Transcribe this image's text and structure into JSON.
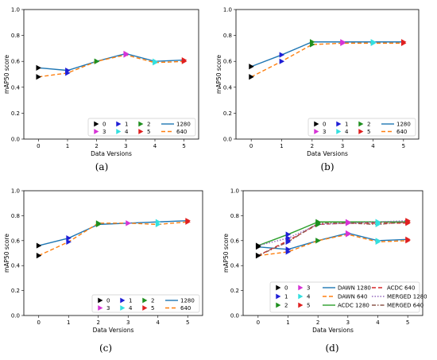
{
  "colors": {
    "v0": "#000000",
    "v1": "#1f1fd6",
    "v2": "#1f8f1f",
    "v3": "#d633d6",
    "v4": "#33e0e0",
    "v5": "#e02020",
    "line1280": "#1f77b4",
    "line640": "#ff7f0e",
    "acdc1280": "#2ca02c",
    "acdc640": "#d62728",
    "merged1280": "#9467bd",
    "merged640": "#8c564b"
  },
  "chart_data": [
    {
      "type": "line",
      "caption": "(a)",
      "xlabel": "Data Versions",
      "ylabel": "mAP50 score",
      "x": [
        0,
        1,
        2,
        3,
        4,
        5
      ],
      "xlim": [
        -0.5,
        5.5
      ],
      "ylim": [
        0.0,
        1.0
      ],
      "yticks": [
        "0.0",
        "0.2",
        "0.4",
        "0.6",
        "0.8",
        "1.0"
      ],
      "xticks": [
        "0",
        "1",
        "2",
        "3",
        "4",
        "5"
      ],
      "series": [
        {
          "name": "1280",
          "key": "line1280",
          "dash": "",
          "values": [
            0.55,
            0.53,
            0.6,
            0.66,
            0.6,
            0.61
          ]
        },
        {
          "name": "640",
          "key": "line640",
          "dash": "5,3",
          "values": [
            0.48,
            0.51,
            0.6,
            0.65,
            0.59,
            0.6
          ]
        }
      ],
      "markers": [
        {
          "version": 0,
          "color": "v0",
          "values": [
            0.55,
            0.48
          ]
        },
        {
          "version": 1,
          "color": "v1",
          "values": [
            0.53,
            0.51
          ]
        },
        {
          "version": 2,
          "color": "v2",
          "values": [
            0.6,
            0.6
          ]
        },
        {
          "version": 3,
          "color": "v3",
          "values": [
            0.66,
            0.65
          ]
        },
        {
          "version": 4,
          "color": "v4",
          "values": [
            0.6,
            0.59
          ]
        },
        {
          "version": 5,
          "color": "v5",
          "values": [
            0.61,
            0.6
          ]
        }
      ],
      "legend": {
        "marker_labels": [
          "0",
          "1",
          "2",
          "3",
          "4",
          "5"
        ],
        "line_labels": [
          "1280",
          "640"
        ],
        "placement": "lower-right"
      }
    },
    {
      "type": "line",
      "caption": "(b)",
      "xlabel": "Data Versions",
      "ylabel": "mAP50 score",
      "x": [
        0,
        1,
        2,
        3,
        4,
        5
      ],
      "xlim": [
        -0.5,
        5.5
      ],
      "ylim": [
        0.0,
        1.0
      ],
      "yticks": [
        "0.0",
        "0.2",
        "0.4",
        "0.6",
        "0.8",
        "1.0"
      ],
      "xticks": [
        "0",
        "1",
        "2",
        "3",
        "4",
        "5"
      ],
      "series": [
        {
          "name": "1280",
          "key": "line1280",
          "dash": "",
          "values": [
            0.56,
            0.65,
            0.75,
            0.75,
            0.75,
            0.75
          ]
        },
        {
          "name": "640",
          "key": "line640",
          "dash": "5,3",
          "values": [
            0.48,
            0.6,
            0.73,
            0.74,
            0.74,
            0.74
          ]
        }
      ],
      "markers": [
        {
          "version": 0,
          "color": "v0",
          "values": [
            0.56,
            0.48
          ]
        },
        {
          "version": 1,
          "color": "v1",
          "values": [
            0.65,
            0.6
          ]
        },
        {
          "version": 2,
          "color": "v2",
          "values": [
            0.75,
            0.73
          ]
        },
        {
          "version": 3,
          "color": "v3",
          "values": [
            0.75,
            0.74
          ]
        },
        {
          "version": 4,
          "color": "v4",
          "values": [
            0.75,
            0.74
          ]
        },
        {
          "version": 5,
          "color": "v5",
          "values": [
            0.75,
            0.74
          ]
        }
      ],
      "legend": {
        "marker_labels": [
          "0",
          "1",
          "2",
          "3",
          "4",
          "5"
        ],
        "line_labels": [
          "1280",
          "640"
        ],
        "placement": "lower-right"
      }
    },
    {
      "type": "line",
      "caption": "(c)",
      "xlabel": "Data Versions",
      "ylabel": "mAP50 score",
      "x": [
        0,
        1,
        2,
        3,
        4,
        5
      ],
      "xlim": [
        -0.5,
        5.5
      ],
      "ylim": [
        0.0,
        1.0
      ],
      "yticks": [
        "0.0",
        "0.2",
        "0.4",
        "0.6",
        "0.8",
        "1.0"
      ],
      "xticks": [
        "0",
        "1",
        "2",
        "3",
        "4",
        "5"
      ],
      "series": [
        {
          "name": "1280",
          "key": "line1280",
          "dash": "",
          "values": [
            0.56,
            0.62,
            0.73,
            0.74,
            0.75,
            0.76
          ]
        },
        {
          "name": "640",
          "key": "line640",
          "dash": "5,3",
          "values": [
            0.48,
            0.59,
            0.74,
            0.74,
            0.73,
            0.75
          ]
        }
      ],
      "markers": [
        {
          "version": 0,
          "color": "v0",
          "values": [
            0.56,
            0.48
          ]
        },
        {
          "version": 1,
          "color": "v1",
          "values": [
            0.62,
            0.59
          ]
        },
        {
          "version": 2,
          "color": "v2",
          "values": [
            0.73,
            0.74
          ]
        },
        {
          "version": 3,
          "color": "v3",
          "values": [
            0.74,
            0.74
          ]
        },
        {
          "version": 4,
          "color": "v4",
          "values": [
            0.75,
            0.73
          ]
        },
        {
          "version": 5,
          "color": "v5",
          "values": [
            0.76,
            0.75
          ]
        }
      ],
      "legend": {
        "marker_labels": [
          "0",
          "1",
          "2",
          "3",
          "4",
          "5"
        ],
        "line_labels": [
          "1280",
          "640"
        ],
        "placement": "lower-right"
      }
    },
    {
      "type": "line",
      "caption": "(d)",
      "xlabel": "Data Versions",
      "ylabel": "mAP50 score",
      "x": [
        0,
        1,
        2,
        3,
        4,
        5
      ],
      "xlim": [
        -0.5,
        5.5
      ],
      "ylim": [
        0.0,
        1.0
      ],
      "yticks": [
        "0.0",
        "0.2",
        "0.4",
        "0.6",
        "0.8",
        "1.0"
      ],
      "xticks": [
        "0",
        "1",
        "2",
        "3",
        "4",
        "5"
      ],
      "series": [
        {
          "name": "DAWN 1280",
          "key": "line1280",
          "dash": "",
          "values": [
            0.55,
            0.53,
            0.6,
            0.66,
            0.6,
            0.61
          ]
        },
        {
          "name": "DAWN 640",
          "key": "line640",
          "dash": "5,3",
          "values": [
            0.48,
            0.51,
            0.6,
            0.65,
            0.59,
            0.6
          ]
        },
        {
          "name": "ACDC 1280",
          "key": "acdc1280",
          "dash": "",
          "values": [
            0.56,
            0.65,
            0.75,
            0.75,
            0.75,
            0.75
          ]
        },
        {
          "name": "ACDC 640",
          "key": "acdc640",
          "dash": "5,3",
          "values": [
            0.48,
            0.6,
            0.73,
            0.74,
            0.74,
            0.74
          ]
        },
        {
          "name": "MERGED 1280",
          "key": "merged1280",
          "dash": "1.5,2",
          "values": [
            0.56,
            0.62,
            0.73,
            0.74,
            0.75,
            0.76
          ]
        },
        {
          "name": "MERGED 640",
          "key": "merged640",
          "dash": "5,2,1.5,2",
          "values": [
            0.48,
            0.59,
            0.74,
            0.74,
            0.73,
            0.75
          ]
        }
      ],
      "markers": [
        {
          "version": 0,
          "color": "v0",
          "values": [
            0.55,
            0.48,
            0.56,
            0.48,
            0.56,
            0.48
          ]
        },
        {
          "version": 1,
          "color": "v1",
          "values": [
            0.53,
            0.51,
            0.65,
            0.6,
            0.62,
            0.59
          ]
        },
        {
          "version": 2,
          "color": "v2",
          "values": [
            0.6,
            0.6,
            0.75,
            0.73,
            0.73,
            0.74
          ]
        },
        {
          "version": 3,
          "color": "v3",
          "values": [
            0.66,
            0.65,
            0.75,
            0.74,
            0.74,
            0.74
          ]
        },
        {
          "version": 4,
          "color": "v4",
          "values": [
            0.6,
            0.59,
            0.75,
            0.74,
            0.75,
            0.73
          ]
        },
        {
          "version": 5,
          "color": "v5",
          "values": [
            0.61,
            0.6,
            0.75,
            0.74,
            0.76,
            0.75
          ]
        }
      ],
      "legend": {
        "marker_labels": [
          "0",
          "1",
          "2",
          "3",
          "4",
          "5"
        ],
        "line_labels": [
          "DAWN 1280",
          "DAWN 640",
          "ACDC 1280",
          "ACDC 640",
          "MERGED 1280",
          "MERGED 640"
        ],
        "placement": "lower-right"
      }
    }
  ]
}
